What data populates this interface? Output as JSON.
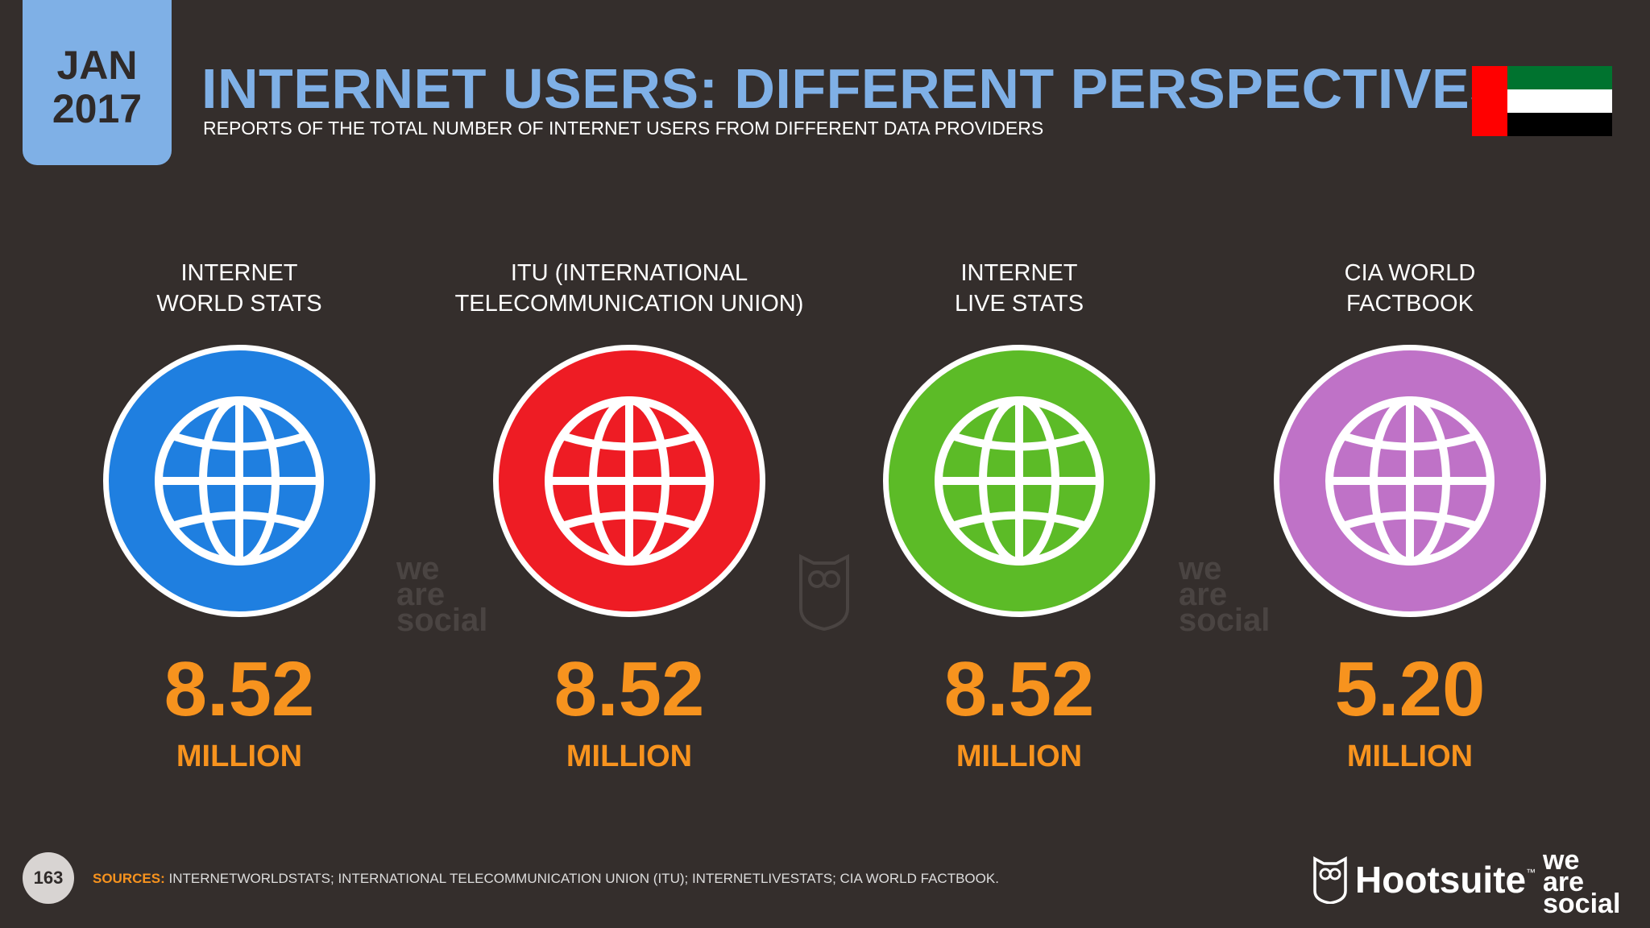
{
  "header": {
    "month": "JAN",
    "year": "2017",
    "title": "INTERNET USERS: DIFFERENT PERSPECTIVES",
    "subtitle": "REPORTS OF THE TOTAL NUMBER OF INTERNET USERS FROM DIFFERENT DATA PROVIDERS"
  },
  "colors": {
    "background": "#342e2c",
    "accent": "#7fb0e6",
    "value": "#f7931e"
  },
  "providers": [
    {
      "label_line1": "INTERNET",
      "label_line2": "WORLD STATS",
      "value": "8.52",
      "unit": "MILLION",
      "color": "#1f7fe0",
      "icon": "globe-icon"
    },
    {
      "label_line1": "ITU (INTERNATIONAL",
      "label_line2": "TELECOMMUNICATION UNION)",
      "value": "8.52",
      "unit": "MILLION",
      "color": "#ee1c24",
      "icon": "globe-icon"
    },
    {
      "label_line1": "INTERNET",
      "label_line2": "LIVE STATS",
      "value": "8.52",
      "unit": "MILLION",
      "color": "#5cbb27",
      "icon": "globe-icon"
    },
    {
      "label_line1": "CIA WORLD",
      "label_line2": "FACTBOOK",
      "value": "5.20",
      "unit": "MILLION",
      "color": "#bf72c7",
      "icon": "globe-icon"
    }
  ],
  "watermark": {
    "line1": "we",
    "line2": "are",
    "line3": "social"
  },
  "footer": {
    "page_number": "163",
    "sources_label": "SOURCES:",
    "sources_text": "INTERNETWORLDSTATS; INTERNATIONAL TELECOMMUNICATION UNION (ITU); INTERNETLIVESTATS; CIA WORLD FACTBOOK.",
    "hootsuite": "Hootsuite",
    "tm": "™",
    "brand_line1": "we",
    "brand_line2": "are",
    "brand_line3": "social"
  }
}
